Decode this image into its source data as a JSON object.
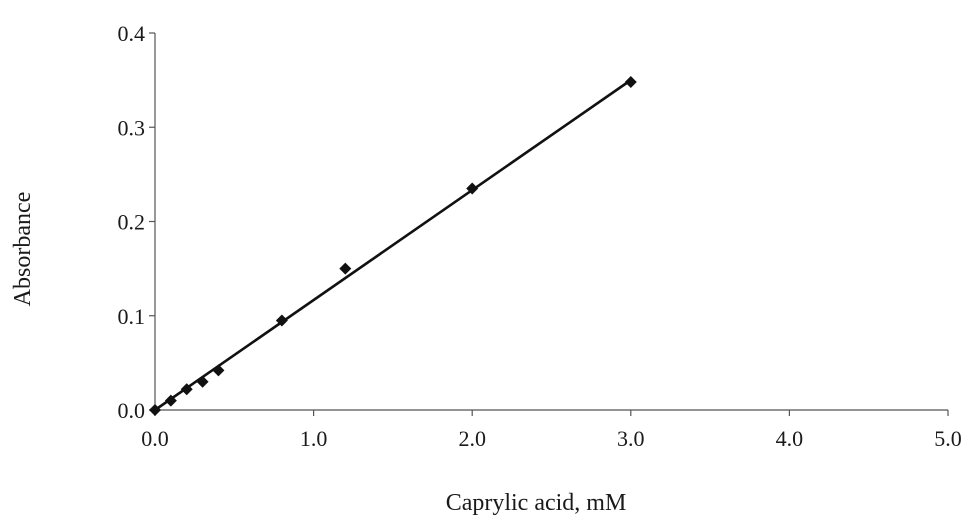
{
  "chart_data": {
    "type": "scatter",
    "title": "",
    "xlabel": "Caprylic acid, mM",
    "ylabel": "Absorbance",
    "xlim": [
      0,
      5
    ],
    "ylim": [
      0,
      0.4
    ],
    "x_ticks": [
      0,
      1,
      2,
      3,
      4,
      5
    ],
    "x_tick_labels": [
      "0.0",
      "1.0",
      "2.0",
      "3.0",
      "4.0",
      "5.0"
    ],
    "y_ticks": [
      0,
      0.1,
      0.2,
      0.3,
      0.4
    ],
    "y_tick_labels": [
      "0.0",
      "0.1",
      "0.2",
      "0.3",
      "0.4"
    ],
    "grid": false,
    "legend": "none",
    "marker": "diamond",
    "colors": {
      "series": "#111111",
      "axis": "#555555"
    },
    "series": [
      {
        "x": [
          0.0,
          0.1,
          0.2,
          0.3,
          0.4,
          0.8,
          1.2,
          2.0,
          3.0
        ],
        "y": [
          0.0,
          0.01,
          0.022,
          0.03,
          0.042,
          0.095,
          0.15,
          0.235,
          0.348
        ]
      }
    ],
    "trendline": {
      "type": "linear",
      "x": [
        0.0,
        3.0
      ],
      "y": [
        0.0,
        0.35
      ]
    }
  }
}
